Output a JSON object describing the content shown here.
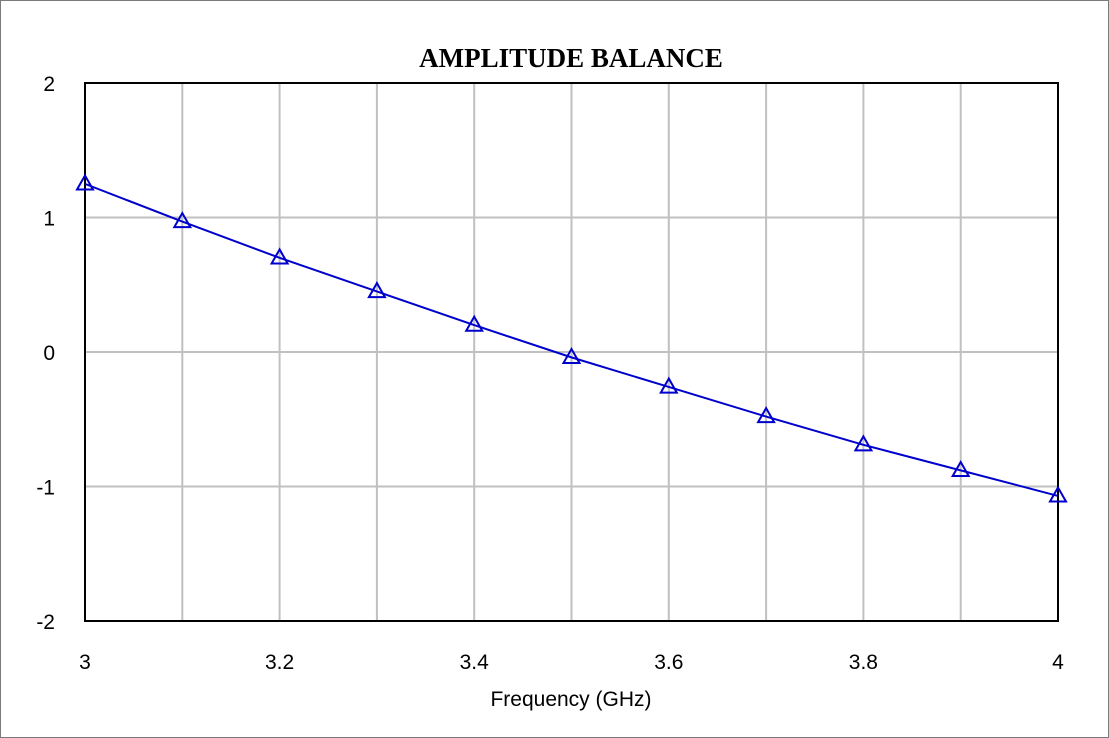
{
  "chart_data": {
    "type": "line",
    "title": "AMPLITUDE BALANCE",
    "xlabel": "Frequency (GHz)",
    "ylabel": "",
    "xlim": [
      3,
      4
    ],
    "ylim": [
      -2,
      2
    ],
    "x_ticks": [
      "3",
      "3.2",
      "3.4",
      "3.6",
      "3.8",
      "4"
    ],
    "y_ticks": [
      "2",
      "1",
      "0",
      "-1",
      "-2"
    ],
    "grid": true,
    "legend": "none",
    "series": [
      {
        "color": "#0000cc",
        "marker": "triangle",
        "x": [
          3.0,
          3.1,
          3.2,
          3.3,
          3.4,
          3.5,
          3.6,
          3.7,
          3.8,
          3.9,
          4.0
        ],
        "y": [
          1.25,
          0.97,
          0.7,
          0.45,
          0.2,
          -0.04,
          -0.26,
          -0.48,
          -0.69,
          -0.88,
          -1.07
        ]
      }
    ]
  }
}
